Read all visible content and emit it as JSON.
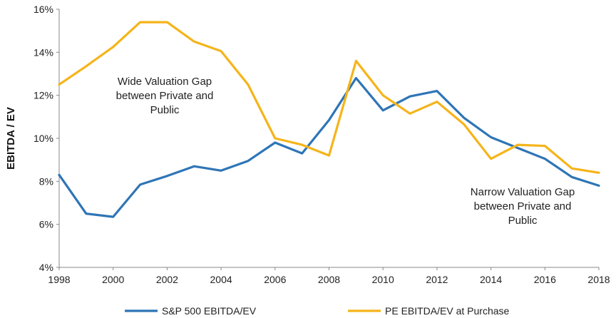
{
  "chart_data": {
    "type": "line",
    "title": "",
    "xlabel": "",
    "ylabel": "EBITDA / EV",
    "x": [
      1998,
      1999,
      2000,
      2001,
      2002,
      2003,
      2004,
      2005,
      2006,
      2007,
      2008,
      2009,
      2010,
      2011,
      2012,
      2013,
      2014,
      2015,
      2016,
      2017,
      2018
    ],
    "xlim": [
      1998,
      2018
    ],
    "ylim": [
      4,
      16
    ],
    "y_unit": "%",
    "x_ticks": [
      "1998",
      "2000",
      "2002",
      "2004",
      "2006",
      "2008",
      "2010",
      "2012",
      "2014",
      "2016",
      "2018"
    ],
    "y_ticks": [
      "4%",
      "6%",
      "8%",
      "10%",
      "12%",
      "14%",
      "16%"
    ],
    "grid": false,
    "legend_position": "bottom",
    "series": [
      {
        "name": "S&P 500 EBITDA/EV",
        "color": "#2E75B6",
        "values": [
          8.3,
          6.5,
          6.35,
          7.85,
          8.25,
          8.7,
          8.5,
          8.95,
          9.8,
          9.3,
          10.85,
          12.8,
          11.3,
          11.95,
          12.2,
          10.95,
          10.05,
          9.55,
          9.05,
          8.2,
          7.8
        ]
      },
      {
        "name": "PE EBITDA/EV at Purchase",
        "color": "#F5B41A",
        "values": [
          12.5,
          13.35,
          14.25,
          15.4,
          15.4,
          14.5,
          14.05,
          12.5,
          10.0,
          9.7,
          9.2,
          13.6,
          12.0,
          11.15,
          11.7,
          10.65,
          9.05,
          9.7,
          9.65,
          8.6,
          8.4
        ]
      }
    ],
    "annotations": [
      {
        "lines": [
          "Wide Valuation Gap",
          "between Private and",
          "Public"
        ]
      },
      {
        "lines": [
          "Narrow Valuation Gap",
          "between Private and",
          "Public"
        ]
      }
    ]
  }
}
